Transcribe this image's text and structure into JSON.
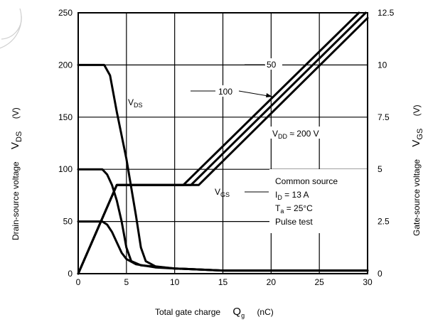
{
  "chart_data": {
    "type": "line",
    "xlabel": "Total gate charge",
    "xlabel_symbol": "Q",
    "xlabel_symbol_sub": "g",
    "xlabel_unit": "(nC)",
    "ylabel_left": "Drain-source voltage",
    "ylabel_left_symbol": "V",
    "ylabel_left_symbol_sub": "DS",
    "ylabel_left_unit": "(V)",
    "ylabel_right": "Gate-source voltage",
    "ylabel_right_symbol": "V",
    "ylabel_right_symbol_sub": "GS",
    "ylabel_right_unit": "(V)",
    "xlim": [
      0,
      30
    ],
    "ylim_left": [
      0,
      250
    ],
    "ylim_right": [
      0,
      12.5
    ],
    "x_ticks": [
      "0",
      "5",
      "10",
      "15",
      "20",
      "25",
      "30"
    ],
    "y_left_ticks": [
      "0",
      "50",
      "100",
      "150",
      "200",
      "250"
    ],
    "y_right_ticks": [
      "0",
      "2.5",
      "5",
      "7.5",
      "10",
      "12.5"
    ],
    "grid": true,
    "series": [
      {
        "axis": "left",
        "points": [
          [
            0,
            200
          ],
          [
            2.7,
            200
          ],
          [
            3.3,
            190
          ],
          [
            4,
            155
          ],
          [
            5,
            110
          ],
          [
            6,
            55
          ],
          [
            6.5,
            25
          ],
          [
            7,
            12
          ],
          [
            8,
            7
          ],
          [
            10,
            5
          ],
          [
            15,
            3
          ],
          [
            30,
            3
          ]
        ]
      },
      {
        "axis": "left",
        "points": [
          [
            0,
            100
          ],
          [
            2.5,
            100
          ],
          [
            3,
            95
          ],
          [
            3.5,
            85
          ],
          [
            4,
            70
          ],
          [
            4.5,
            50
          ],
          [
            5,
            25
          ],
          [
            5.5,
            12
          ],
          [
            6.5,
            8
          ],
          [
            10,
            5
          ],
          [
            15,
            3
          ],
          [
            30,
            3
          ]
        ]
      },
      {
        "axis": "left",
        "points": [
          [
            0,
            50
          ],
          [
            2.5,
            50
          ],
          [
            3,
            47
          ],
          [
            3.5,
            40
          ],
          [
            4,
            30
          ],
          [
            4.5,
            20
          ],
          [
            5,
            14
          ],
          [
            6,
            9
          ],
          [
            8,
            6
          ],
          [
            10,
            5
          ],
          [
            15,
            3
          ],
          [
            30,
            3
          ]
        ]
      },
      {
        "axis": "right",
        "points": [
          [
            0,
            0
          ],
          [
            4,
            4.25
          ],
          [
            10.9,
            4.25
          ],
          [
            29.1,
            12.5
          ]
        ]
      },
      {
        "axis": "right",
        "points": [
          [
            0,
            0
          ],
          [
            4,
            4.25
          ],
          [
            11.7,
            4.25
          ],
          [
            29.8,
            12.5
          ]
        ]
      },
      {
        "axis": "right",
        "points": [
          [
            0,
            0
          ],
          [
            4,
            4.25
          ],
          [
            12.5,
            4.25
          ],
          [
            30,
            12.25
          ]
        ]
      }
    ],
    "annotations": {
      "vds_label": "V",
      "vds_label_sub": "DS",
      "vgs_label": "V",
      "vgs_label_sub": "GS",
      "label_50": "50",
      "label_100": "100",
      "vdd_prefix": "V",
      "vdd_sub": "DD",
      "vdd_suffix": " ≈ 200 V"
    },
    "conditions": {
      "line1": "Common source",
      "line2_prefix": "I",
      "line2_sub": "D",
      "line2_suffix": " = 13 A",
      "line3_prefix": "T",
      "line3_sub": "a",
      "line3_suffix": " = 25°C",
      "line4": "Pulse test"
    }
  }
}
